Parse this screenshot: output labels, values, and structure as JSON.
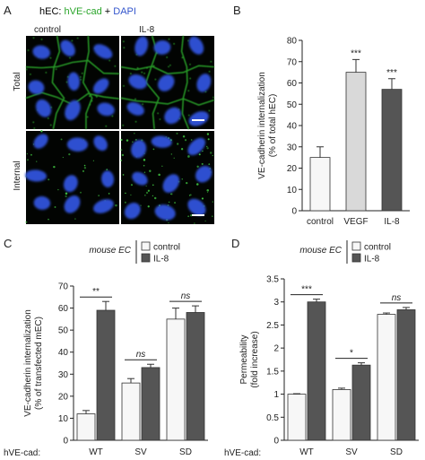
{
  "panel_A": {
    "letter": "A",
    "title_prefix": "hEC: ",
    "title_green": "hVE-cad",
    "title_plus": " + ",
    "title_blue": "DAPI",
    "col_labels": [
      "control",
      "IL-8"
    ],
    "row_labels": [
      "Total",
      "Internal"
    ]
  },
  "legend": {
    "label": "mouse EC",
    "entries": [
      "control",
      "IL-8"
    ]
  },
  "hve_cad_label": "hVE-cad:",
  "colors": {
    "light": "#f7f7f7",
    "mid": "#d9d9d9",
    "dark": "#555555",
    "green": "#2aa52a",
    "blue": "#3355cc"
  },
  "chart_data": [
    {
      "panel": "B",
      "type": "bar",
      "categories": [
        "control",
        "VEGF",
        "IL-8"
      ],
      "values": [
        25,
        65,
        57
      ],
      "errors": [
        5,
        6,
        5
      ],
      "significance": [
        "",
        "***",
        "***"
      ],
      "ylabel": "VE-cadherin internalization\n(% of total hEC)",
      "ylim": [
        0,
        80
      ],
      "yticks": [
        0,
        10,
        20,
        30,
        40,
        50,
        60,
        70,
        80
      ],
      "grid": false
    },
    {
      "panel": "C",
      "type": "bar",
      "categories": [
        "WT",
        "SV",
        "SD"
      ],
      "series": [
        {
          "name": "control",
          "values": [
            12,
            26,
            55
          ],
          "errors": [
            1.5,
            2,
            5
          ]
        },
        {
          "name": "IL-8",
          "values": [
            59,
            33,
            58
          ],
          "errors": [
            4,
            1.5,
            3
          ]
        }
      ],
      "significance": [
        "**",
        "ns",
        "ns"
      ],
      "ylabel": "VE-cadherin internalization\n(% of transfected mEC)",
      "ylim": [
        0,
        70
      ],
      "yticks": [
        0,
        10,
        20,
        30,
        40,
        50,
        60,
        70
      ],
      "legend": "top-right",
      "grid": false
    },
    {
      "panel": "D",
      "type": "bar",
      "categories": [
        "WT",
        "SV",
        "SD"
      ],
      "series": [
        {
          "name": "control",
          "values": [
            1.0,
            1.1,
            2.73
          ],
          "errors": [
            0.01,
            0.03,
            0.03
          ]
        },
        {
          "name": "IL-8",
          "values": [
            3.0,
            1.63,
            2.83
          ],
          "errors": [
            0.06,
            0.05,
            0.05
          ]
        }
      ],
      "significance": [
        "***",
        "*",
        "ns"
      ],
      "ylabel": "Permeability\n(fold increase)",
      "ylim": [
        0,
        3.5
      ],
      "yticks": [
        0,
        0.5,
        1,
        1.5,
        2,
        2.5,
        3,
        3.5
      ],
      "legend": "top-right",
      "grid": false
    }
  ]
}
